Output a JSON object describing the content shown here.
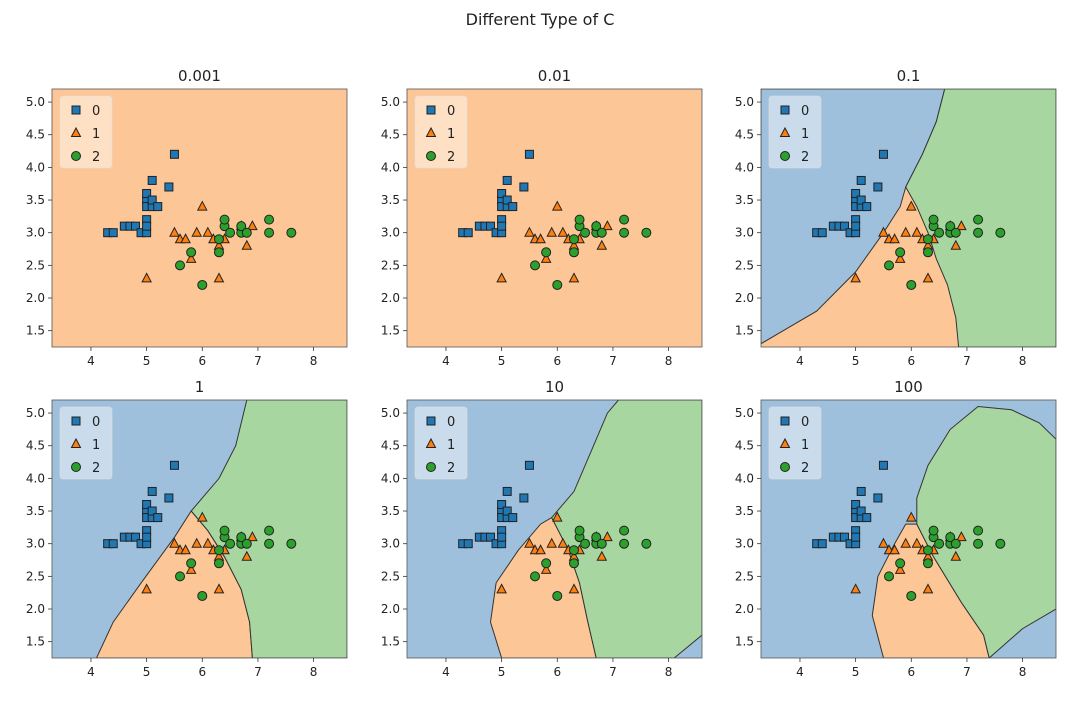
{
  "figure": {
    "suptitle": "Different Type of C"
  },
  "colors": {
    "class0": "#1f77b4",
    "class1": "#ff7f0e",
    "class2": "#2ca02c",
    "region0": "#9fc0dc",
    "region1": "#fdc696",
    "region2": "#a7d6a1"
  },
  "chart_data": [
    {
      "type": "scatter",
      "title": "0.001",
      "xlim": [
        3.3,
        8.6
      ],
      "ylim": [
        1.25,
        5.2
      ],
      "xticks": [
        4,
        5,
        6,
        7,
        8
      ],
      "yticks": [
        1.5,
        2.0,
        2.5,
        3.0,
        3.5,
        4.0,
        4.5,
        5.0
      ],
      "legend": {
        "placement": "top-left",
        "entries": [
          "0",
          "1",
          "2"
        ]
      },
      "regions": "all class 1"
    },
    {
      "type": "scatter",
      "title": "0.01",
      "xlim": [
        3.3,
        8.6
      ],
      "ylim": [
        1.25,
        5.2
      ],
      "xticks": [
        4,
        5,
        6,
        7,
        8
      ],
      "yticks": [
        1.5,
        2.0,
        2.5,
        3.0,
        3.5,
        4.0,
        4.5,
        5.0
      ],
      "legend": {
        "placement": "top-left",
        "entries": [
          "0",
          "1",
          "2"
        ]
      },
      "regions": "all class 1"
    },
    {
      "type": "scatter",
      "title": "0.1",
      "xlim": [
        3.3,
        8.6
      ],
      "ylim": [
        1.25,
        5.2
      ],
      "xticks": [
        4,
        5,
        6,
        7,
        8
      ],
      "yticks": [
        1.5,
        2.0,
        2.5,
        3.0,
        3.5,
        4.0,
        4.5,
        5.0
      ],
      "legend": {
        "placement": "top-left",
        "entries": [
          "0",
          "1",
          "2"
        ]
      },
      "regions": "class 0 upper-left, class 1 lower-middle, class 2 right"
    },
    {
      "type": "scatter",
      "title": "1",
      "xlim": [
        3.3,
        8.6
      ],
      "ylim": [
        1.25,
        5.2
      ],
      "xticks": [
        4,
        5,
        6,
        7,
        8
      ],
      "yticks": [
        1.5,
        2.0,
        2.5,
        3.0,
        3.5,
        4.0,
        4.5,
        5.0
      ],
      "legend": {
        "placement": "top-left",
        "entries": [
          "0",
          "1",
          "2"
        ]
      },
      "regions": "class 0 left, class 1 bottom-middle, class 2 right"
    },
    {
      "type": "scatter",
      "title": "10",
      "xlim": [
        3.3,
        8.6
      ],
      "ylim": [
        1.25,
        5.2
      ],
      "xticks": [
        4,
        5,
        6,
        7,
        8
      ],
      "yticks": [
        1.5,
        2.0,
        2.5,
        3.0,
        3.5,
        4.0,
        4.5,
        5.0
      ],
      "legend": {
        "placement": "top-left",
        "entries": [
          "0",
          "1",
          "2"
        ]
      },
      "regions": "class 0 background, class 1 bottom-middle, class 2 right"
    },
    {
      "type": "scatter",
      "title": "100",
      "xlim": [
        3.3,
        8.6
      ],
      "ylim": [
        1.25,
        5.2
      ],
      "xticks": [
        4,
        5,
        6,
        7,
        8
      ],
      "yticks": [
        1.5,
        2.0,
        2.5,
        3.0,
        3.5,
        4.0,
        4.5,
        5.0
      ],
      "legend": {
        "placement": "top-left",
        "entries": [
          "0",
          "1",
          "2"
        ]
      },
      "regions": "class 0 background, class 1 bottom-middle, class 2 upper-right blob"
    }
  ],
  "points": {
    "class0": [
      [
        4.3,
        3.0
      ],
      [
        4.4,
        3.0
      ],
      [
        4.6,
        3.1
      ],
      [
        4.7,
        3.1
      ],
      [
        4.8,
        3.1
      ],
      [
        4.9,
        3.0
      ],
      [
        5.0,
        3.0
      ],
      [
        5.0,
        3.2
      ],
      [
        5.0,
        3.5
      ],
      [
        5.0,
        3.6
      ],
      [
        5.0,
        3.4
      ],
      [
        5.1,
        3.4
      ],
      [
        5.1,
        3.8
      ],
      [
        5.1,
        3.5
      ],
      [
        5.2,
        3.4
      ],
      [
        5.4,
        3.7
      ],
      [
        5.5,
        4.2
      ],
      [
        5.0,
        3.1
      ]
    ],
    "class1": [
      [
        5.0,
        2.3
      ],
      [
        5.5,
        3.0
      ],
      [
        5.6,
        2.9
      ],
      [
        5.7,
        2.9
      ],
      [
        5.8,
        2.6
      ],
      [
        5.9,
        3.0
      ],
      [
        6.0,
        3.4
      ],
      [
        6.1,
        3.0
      ],
      [
        6.2,
        2.9
      ],
      [
        6.3,
        2.3
      ],
      [
        6.3,
        2.8
      ],
      [
        6.4,
        2.9
      ],
      [
        6.7,
        3.1
      ],
      [
        6.8,
        2.8
      ],
      [
        6.9,
        3.1
      ]
    ],
    "class2": [
      [
        5.6,
        2.5
      ],
      [
        5.8,
        2.7
      ],
      [
        6.0,
        2.2
      ],
      [
        6.3,
        2.7
      ],
      [
        6.3,
        2.9
      ],
      [
        6.4,
        3.1
      ],
      [
        6.4,
        3.2
      ],
      [
        6.5,
        3.0
      ],
      [
        6.7,
        3.0
      ],
      [
        6.7,
        3.1
      ],
      [
        6.8,
        3.0
      ],
      [
        7.2,
        3.0
      ],
      [
        7.2,
        3.2
      ],
      [
        7.6,
        3.0
      ]
    ]
  }
}
